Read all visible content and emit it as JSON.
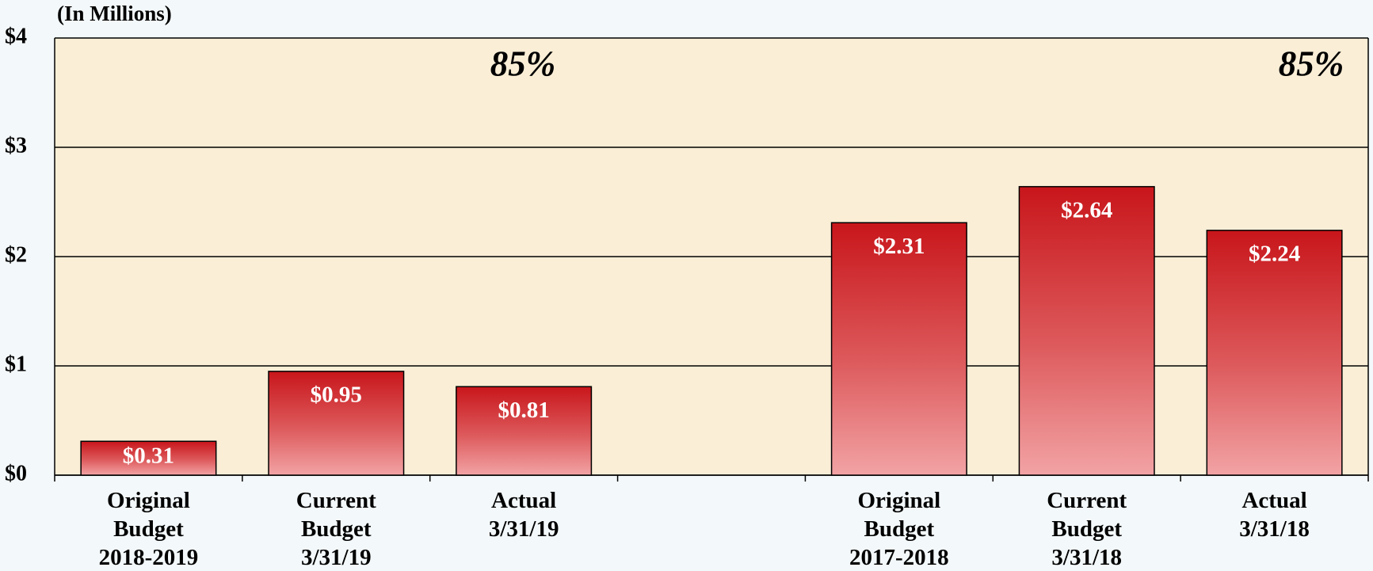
{
  "chart_data": {
    "type": "bar",
    "unit_label": "(In Millions)",
    "categories": [
      "Original\nBudget\n2018-2019",
      "Current\nBudget\n3/31/19",
      "Actual\n3/31/19",
      null,
      "Original\nBudget\n2017-2018",
      "Current\nBudget\n3/31/18",
      "Actual\n3/31/18"
    ],
    "values": [
      0.31,
      0.95,
      0.81,
      null,
      2.31,
      2.64,
      2.24
    ],
    "value_labels": [
      "$0.31",
      "$0.95",
      "$0.81",
      null,
      "$2.31",
      "$2.64",
      "$2.24"
    ],
    "annotations": [
      "85%",
      "85%"
    ],
    "color": "#c8161b",
    "ylim": [
      0,
      4
    ],
    "yticks": [
      {
        "value": 0,
        "label": "$0"
      },
      {
        "value": 1,
        "label": "$1"
      },
      {
        "value": 2,
        "label": "$2"
      },
      {
        "value": 3,
        "label": "$3"
      },
      {
        "value": 4,
        "label": "$4"
      }
    ],
    "grid": true
  }
}
